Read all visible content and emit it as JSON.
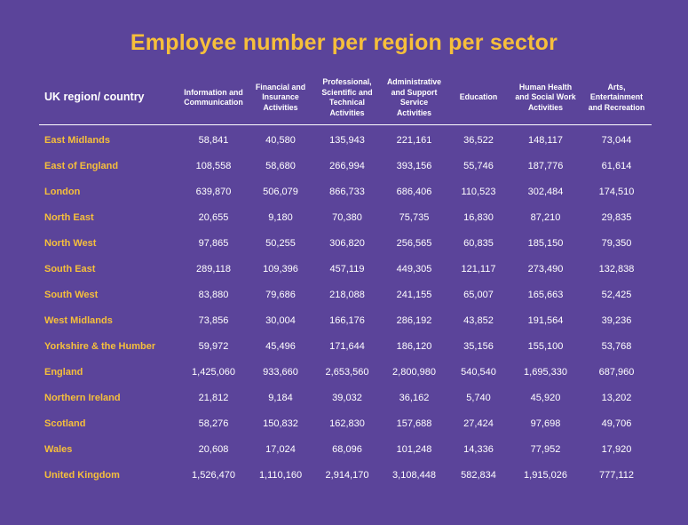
{
  "title": "Employee number per region per sector",
  "colors": {
    "background": "#5b449a",
    "accent": "#f6bf3b",
    "text": "#ffffff"
  },
  "chart_data": {
    "type": "table",
    "title": "Employee number per region per sector",
    "columns": [
      "UK region/ country",
      "Information and Communication",
      "Financial and Insurance Activities",
      "Professional, Scientific and Technical Activities",
      "Administrative and Support Service Activities",
      "Education",
      "Human Health and Social Work Activities",
      "Arts, Entertainment and Recreation"
    ],
    "rows": [
      [
        "East Midlands",
        "58,841",
        "40,580",
        "135,943",
        "221,161",
        "36,522",
        "148,117",
        "73,044"
      ],
      [
        "East of England",
        "108,558",
        "58,680",
        "266,994",
        "393,156",
        "55,746",
        "187,776",
        "61,614"
      ],
      [
        "London",
        "639,870",
        "506,079",
        "866,733",
        "686,406",
        "110,523",
        "302,484",
        "174,510"
      ],
      [
        "North East",
        "20,655",
        "9,180",
        "70,380",
        "75,735",
        "16,830",
        "87,210",
        "29,835"
      ],
      [
        "North West",
        "97,865",
        "50,255",
        "306,820",
        "256,565",
        "60,835",
        "185,150",
        "79,350"
      ],
      [
        "South East",
        "289,118",
        "109,396",
        "457,119",
        "449,305",
        "121,117",
        "273,490",
        "132,838"
      ],
      [
        "South West",
        "83,880",
        "79,686",
        "218,088",
        "241,155",
        "65,007",
        "165,663",
        "52,425"
      ],
      [
        "West Midlands",
        "73,856",
        "30,004",
        "166,176",
        "286,192",
        "43,852",
        "191,564",
        "39,236"
      ],
      [
        "Yorkshire & the Humber",
        "59,972",
        "45,496",
        "171,644",
        "186,120",
        "35,156",
        "155,100",
        "53,768"
      ],
      [
        "England",
        "1,425,060",
        "933,660",
        "2,653,560",
        "2,800,980",
        "540,540",
        "1,695,330",
        "687,960"
      ],
      [
        "Northern Ireland",
        "21,812",
        "9,184",
        "39,032",
        "36,162",
        "5,740",
        "45,920",
        "13,202"
      ],
      [
        "Scotland",
        "58,276",
        "150,832",
        "162,830",
        "157,688",
        "27,424",
        "97,698",
        "49,706"
      ],
      [
        "Wales",
        "20,608",
        "17,024",
        "68,096",
        "101,248",
        "14,336",
        "77,952",
        "17,920"
      ],
      [
        "United Kingdom",
        "1,526,470",
        "1,110,160",
        "2,914,170",
        "3,108,448",
        "582,834",
        "1,915,026",
        "777,112"
      ]
    ]
  }
}
